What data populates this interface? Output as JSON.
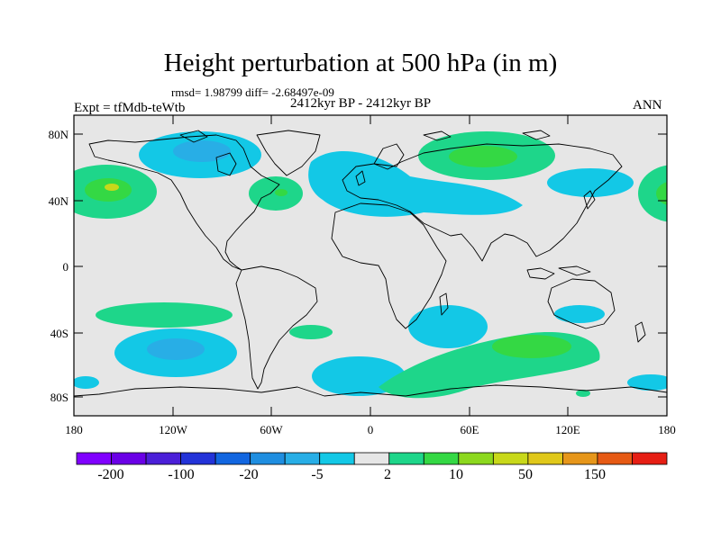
{
  "title": "Height perturbation at 500 hPa (in m)",
  "stats_line": "rmsd= 1.98799  diff= -2.68497e-09",
  "period": "2412kyr BP - 2412kyr BP",
  "experiment": "Expt = tfMdb-teWtb",
  "season": "ANN",
  "map": {
    "projection": "equirectangular",
    "lon_range": [
      -180,
      180
    ],
    "lat_range": [
      -90,
      90
    ],
    "y_tick_labels": [
      "80N",
      "40N",
      "0",
      "40S",
      "80S"
    ],
    "x_tick_labels": [
      "180",
      "120W",
      "60W",
      "0",
      "60E",
      "120E",
      "180"
    ]
  },
  "colorbar": {
    "colors": [
      "#8000ff",
      "#6a00e6",
      "#4b1fd8",
      "#2333d8",
      "#1266e0",
      "#1f8ee0",
      "#28aee6",
      "#13c8e6",
      "#e6e6e6",
      "#1ed68a",
      "#34d844",
      "#8cd81e",
      "#c8d81a",
      "#e0c81a",
      "#e6961a",
      "#e65a14",
      "#e61e14"
    ],
    "labels": [
      "-200",
      "-100",
      "-20",
      "-5",
      "2",
      "10",
      "50",
      "150"
    ]
  },
  "field_colors": {
    "neutral": "#e6e6e6",
    "neg_weak": "#13c8e6",
    "neg_mid": "#28aee6",
    "neg_strong": "#1f8ee0",
    "pos_weak": "#1ed68a",
    "pos_mid": "#34d844",
    "pos_strong": "#c8d81a"
  }
}
